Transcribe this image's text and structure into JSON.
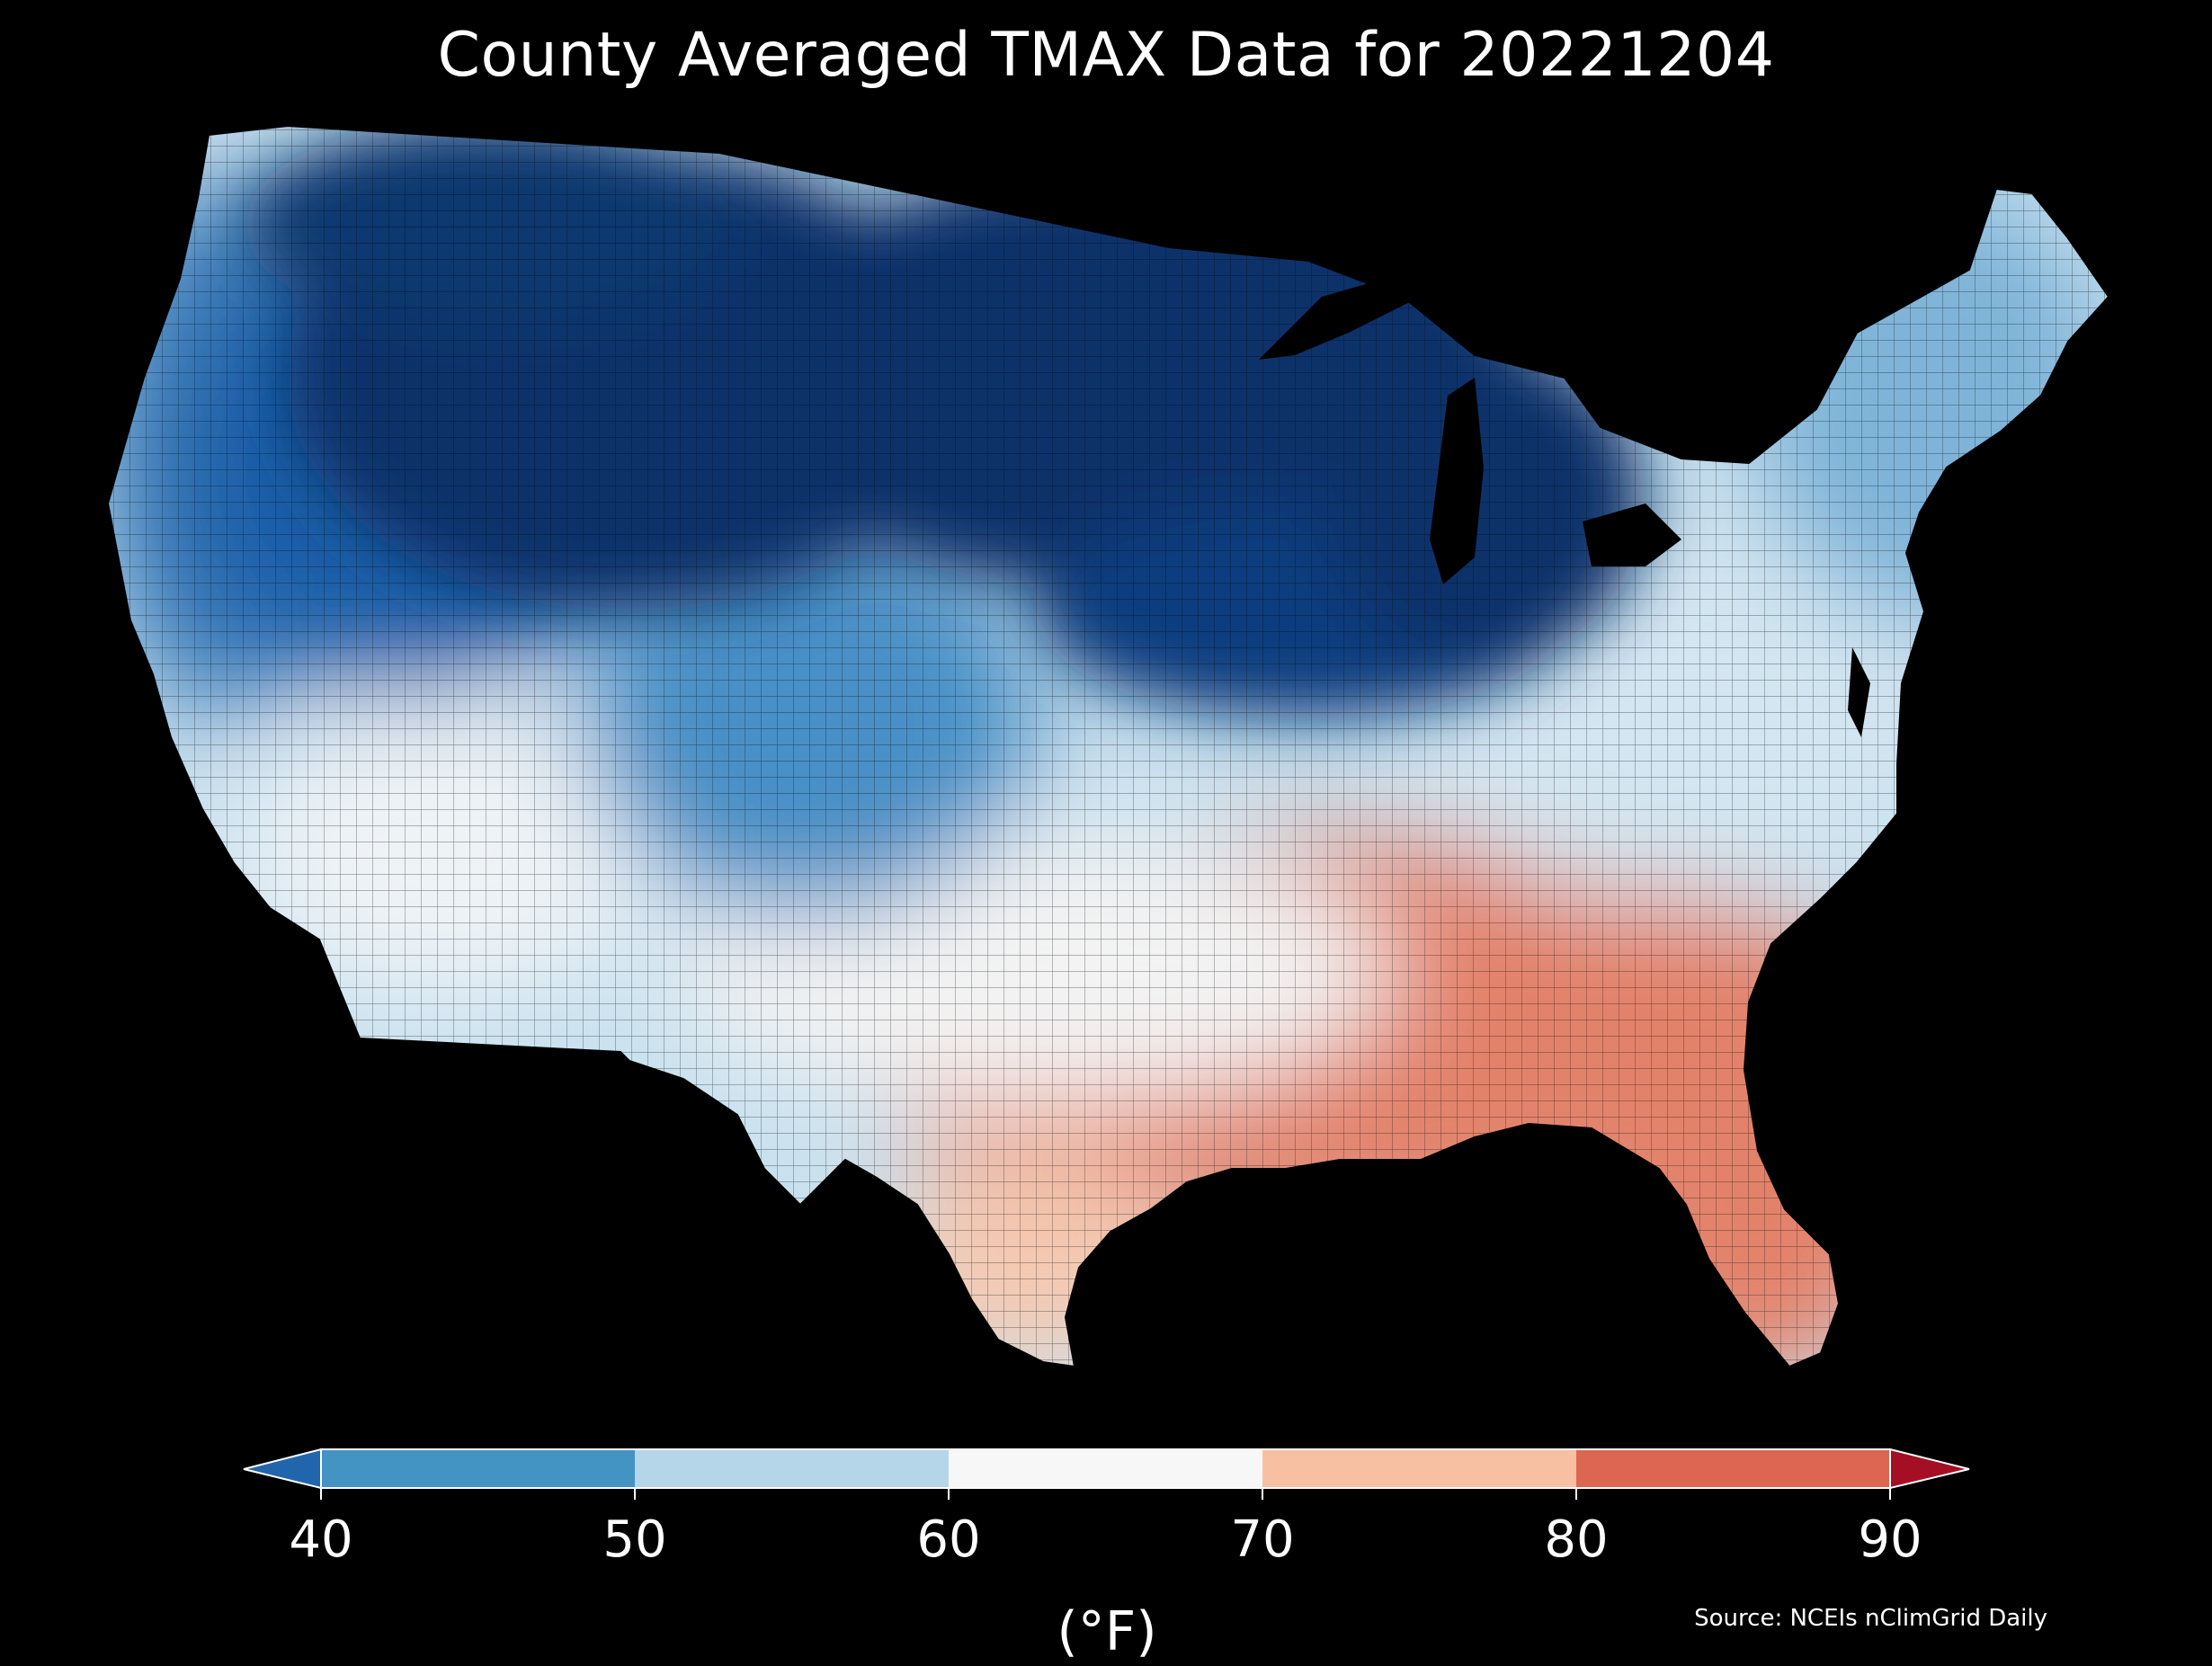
{
  "title": "County Averaged TMAX Data for 20221204",
  "source": "Source: NCEIs nClimGrid Daily",
  "colorbar": {
    "unit_label": "(°F)",
    "ticks": [
      "40",
      "50",
      "60",
      "70",
      "80",
      "90"
    ],
    "bins": [
      {
        "range": "<40",
        "color": "#2166ac"
      },
      {
        "range": "40-50",
        "color": "#4393c3"
      },
      {
        "range": "50-60",
        "color": "#b5d6e9"
      },
      {
        "range": "60-70",
        "color": "#f7f7f7"
      },
      {
        "range": "70-80",
        "color": "#f7c0a3"
      },
      {
        "range": "80-90",
        "color": "#dd6652"
      },
      {
        "range": ">90",
        "color": "#a50f25"
      }
    ]
  },
  "map": {
    "region": "Contiguous United States counties",
    "palette": {
      "very_cold": "#08306b",
      "cold": "#1c5ea8",
      "cool": "#4a90c6",
      "mild": "#9cc8e2",
      "neutral": "#eef3f6",
      "warm": "#f5c9b1",
      "hot": "#e3826a",
      "background": "#000000"
    }
  }
}
